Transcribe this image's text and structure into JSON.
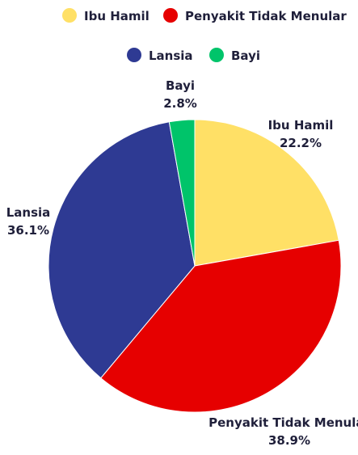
{
  "chart_data": {
    "type": "pie",
    "title": "",
    "slices": [
      {
        "label": "Ibu Hamil",
        "value": 22.2,
        "value_label": "22.2%",
        "color": "#FFE066"
      },
      {
        "label": "Penyakit Tidak Menular",
        "value": 38.9,
        "value_label": "38.9%",
        "color": "#E60000"
      },
      {
        "label": "Lansia",
        "value": 36.1,
        "value_label": "36.1%",
        "color": "#2E3A93"
      },
      {
        "label": "Bayi",
        "value": 2.8,
        "value_label": "2.8%",
        "color": "#00C46A"
      }
    ],
    "legend": {
      "placement": "top",
      "entries": [
        "Ibu Hamil",
        "Penyakit Tidak Menular",
        "Lansia",
        "Bayi"
      ]
    }
  }
}
